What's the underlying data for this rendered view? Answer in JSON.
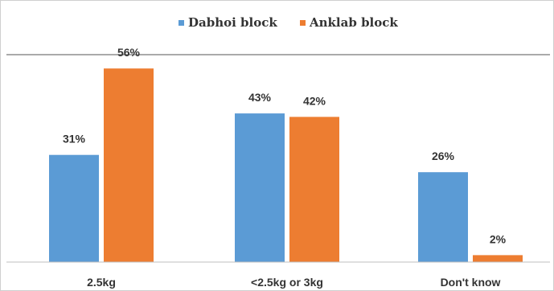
{
  "chart_data": {
    "type": "bar",
    "categories": [
      "2.5kg",
      "<2.5kg or 3kg",
      "Don't know"
    ],
    "series": [
      {
        "name": "Dabhoi block",
        "color": "#5B9BD5",
        "values": [
          31,
          43,
          26
        ]
      },
      {
        "name": "Anklab block",
        "color": "#ED7D31",
        "values": [
          56,
          42,
          2
        ]
      }
    ],
    "value_suffix": "%",
    "ylim": [
      0,
      60
    ],
    "grid": false,
    "legend": "top-center"
  }
}
